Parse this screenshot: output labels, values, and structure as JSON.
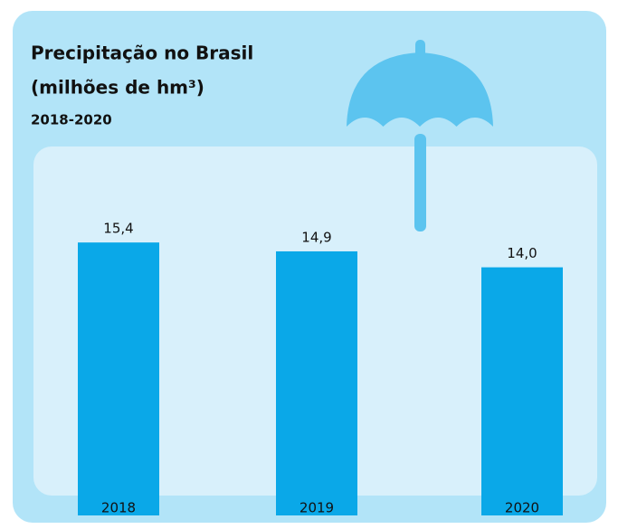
{
  "chart_data": {
    "type": "bar",
    "title": "Precipitação no Brasil",
    "unit": "(milhões de hm³)",
    "subtitle": "2018-2020",
    "categories": [
      "2018",
      "2019",
      "2020"
    ],
    "values": [
      15.4,
      14.9,
      14.0
    ],
    "value_labels": [
      "15,4",
      "14,9",
      "14,0"
    ],
    "color": "#0aa8e8"
  }
}
